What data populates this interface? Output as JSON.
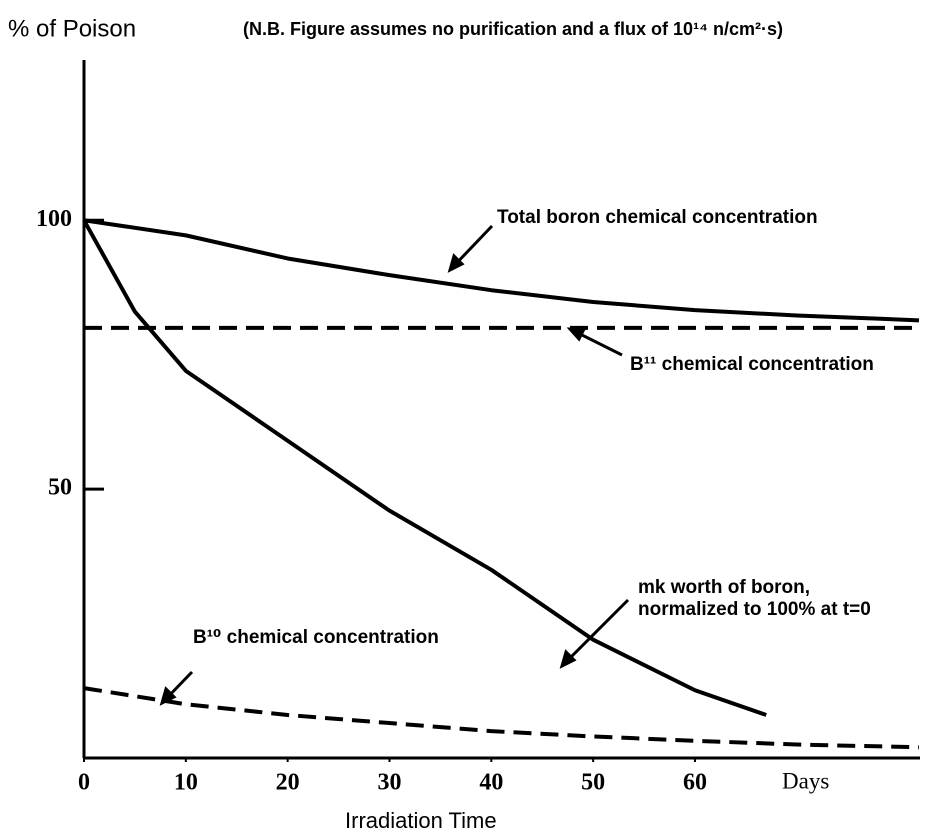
{
  "chart_data": {
    "type": "line",
    "ylabel": "% of Poison",
    "note": "(N.B. Figure assumes no purification and a flux of 10¹⁴ n/cm²·s)",
    "xlabel": "Irradiation Time",
    "x_unit": "Days",
    "xlim": [
      0,
      82
    ],
    "ylim": [
      0,
      130
    ],
    "xticks": [
      0,
      10,
      20,
      30,
      40,
      50,
      60
    ],
    "yticks": [
      50,
      100
    ],
    "series": [
      {
        "color": "#000000",
        "dashed": false,
        "x": [
          0,
          10,
          20,
          30,
          40,
          50,
          60,
          70,
          82
        ],
        "values": [
          100,
          97.2,
          92.9,
          89.8,
          87,
          84.8,
          83.3,
          82.3,
          81.4
        ]
      },
      {
        "color": "#000000",
        "dashed": true,
        "x": [
          0,
          82
        ],
        "values": [
          80,
          80
        ]
      },
      {
        "color": "#000000",
        "dashed": false,
        "x": [
          0,
          5,
          10,
          20,
          30,
          40,
          50,
          60,
          67
        ],
        "values": [
          100,
          83,
          72,
          59,
          46,
          35,
          22,
          12.6,
          8
        ]
      },
      {
        "color": "#000000",
        "dashed": true,
        "x": [
          0,
          10,
          20,
          30,
          40,
          50,
          60,
          70,
          82
        ],
        "values": [
          13,
          10,
          8,
          6.5,
          5,
          4,
          3.2,
          2.5,
          2
        ]
      }
    ],
    "annotations": [
      {
        "text": [
          "Total boron chemical concentration"
        ]
      },
      {
        "text": [
          "B¹¹ chemical concentration"
        ]
      },
      {
        "text": [
          "mk worth of boron,",
          "normalized to 100% at t=0"
        ]
      },
      {
        "text": [
          "B¹⁰ chemical concentration"
        ]
      }
    ]
  }
}
